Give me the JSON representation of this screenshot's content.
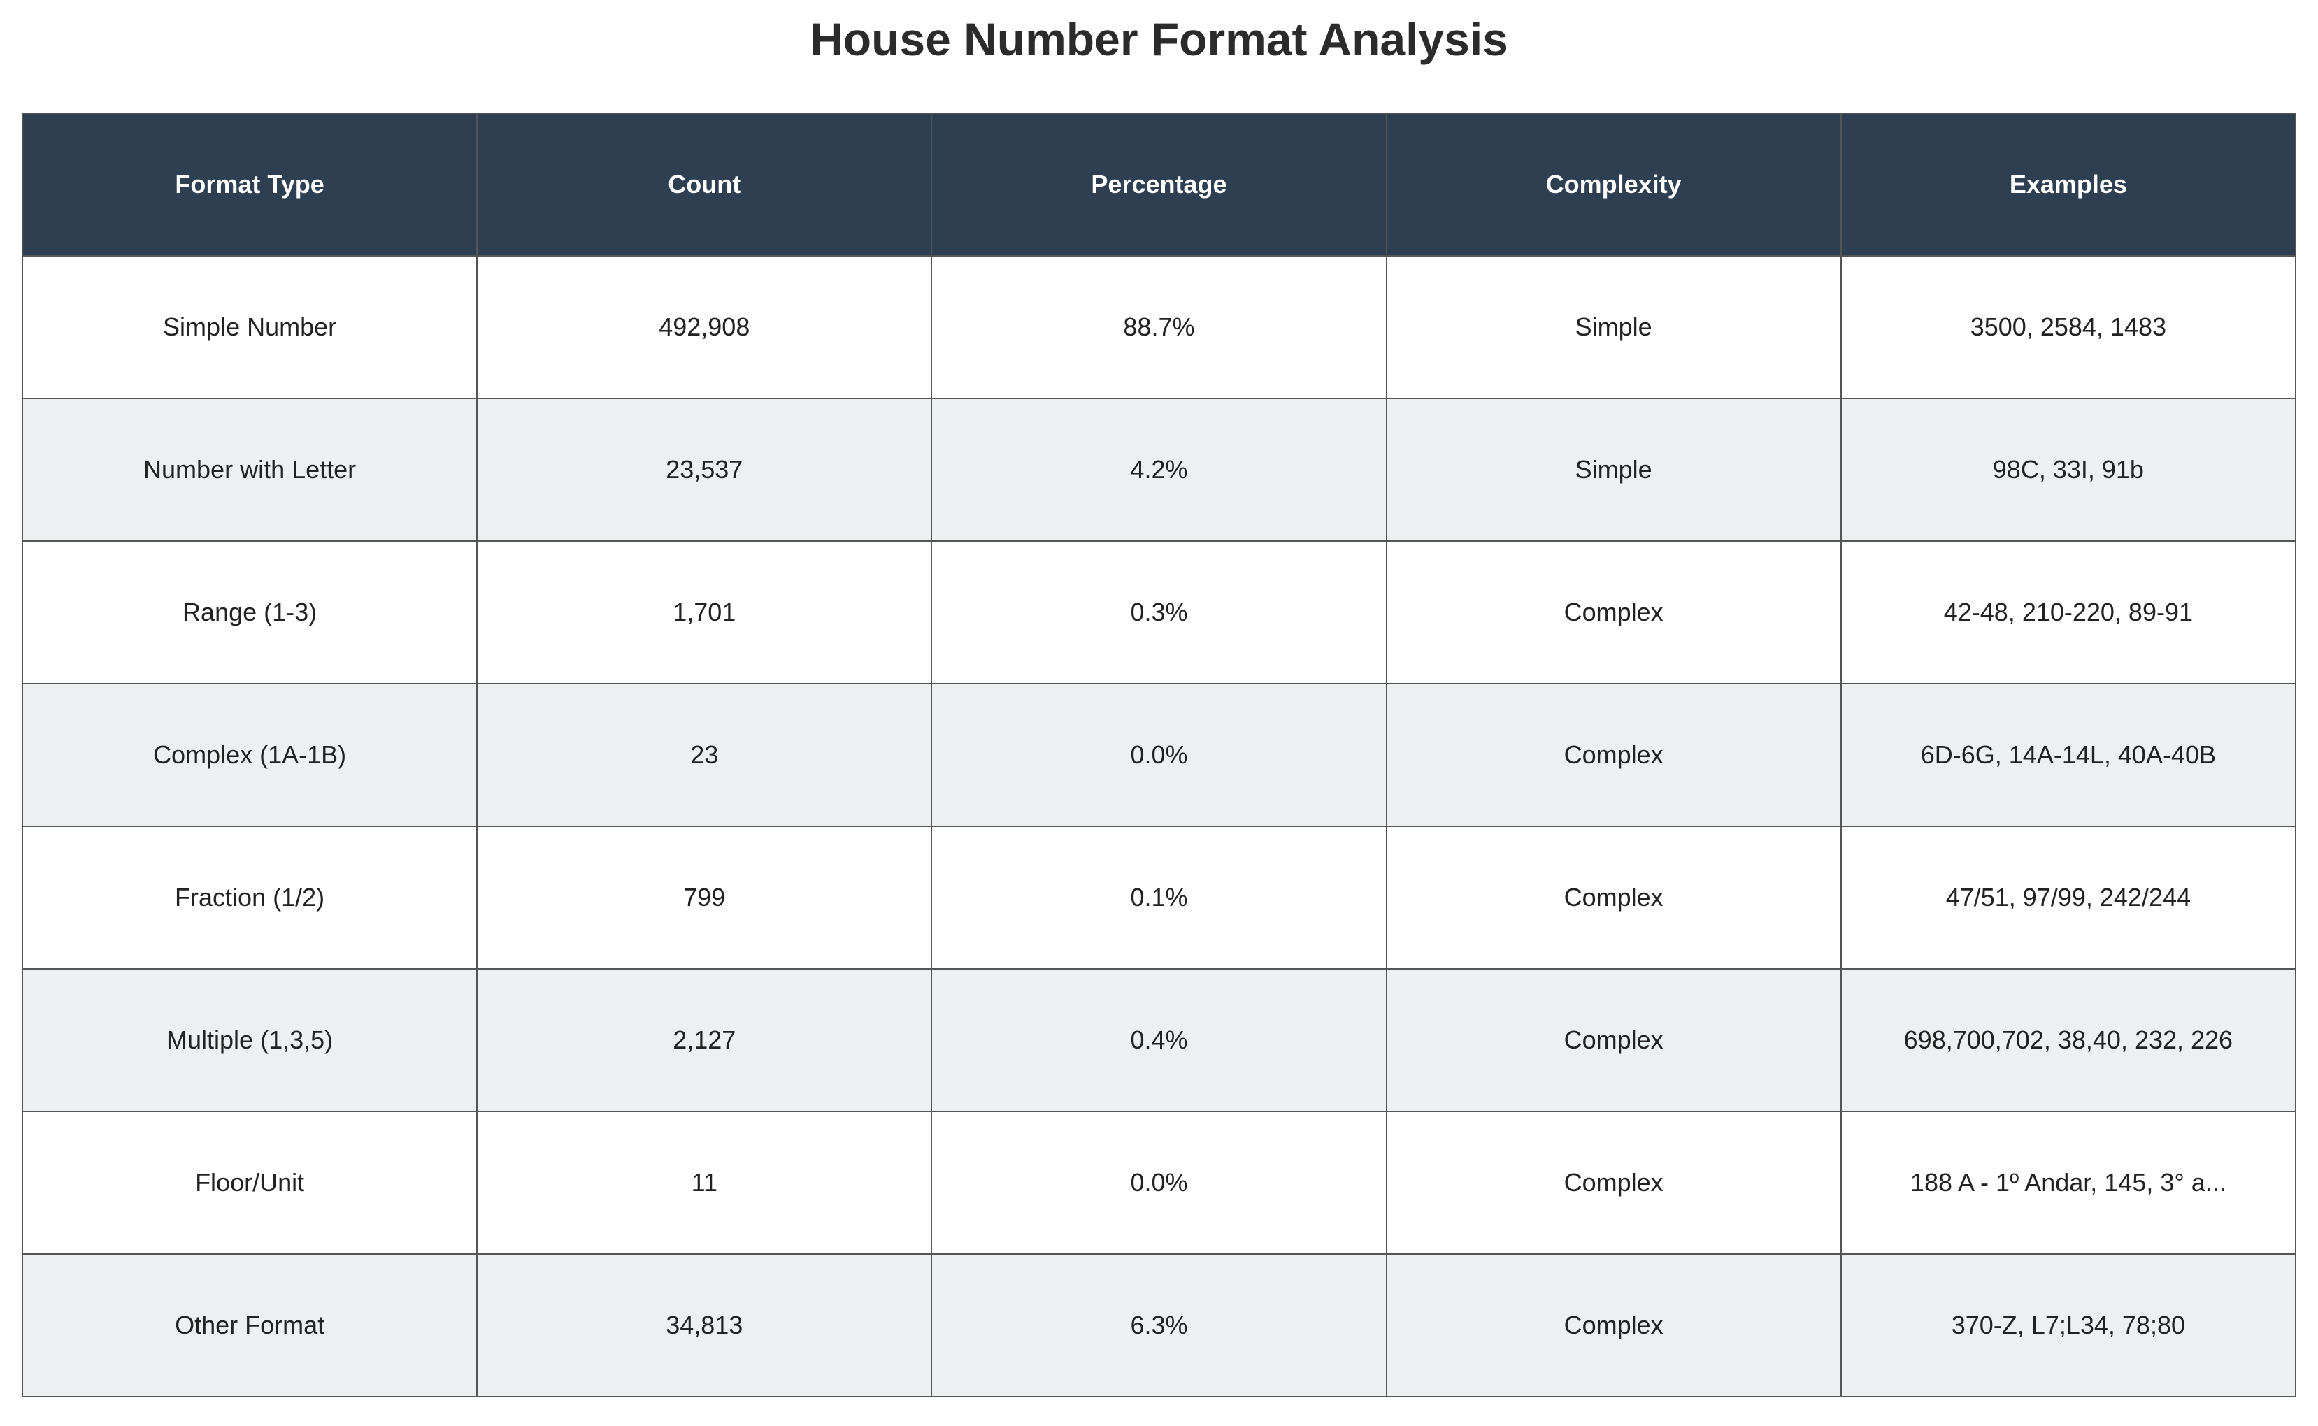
{
  "colors": {
    "header_bg": "#2e3f52",
    "header_text": "#ffffff",
    "row_alt_bg": "#ecf0f1",
    "row_bg": "#ffffff",
    "border": "#555555"
  },
  "chart_data": {
    "type": "table",
    "title": "House Number Format Analysis",
    "columns": [
      "Format Type",
      "Count",
      "Percentage",
      "Complexity",
      "Examples"
    ],
    "rows": [
      [
        "Simple Number",
        "492,908",
        "88.7%",
        "Simple",
        "3500, 2584, 1483"
      ],
      [
        "Number with Letter",
        "23,537",
        "4.2%",
        "Simple",
        "98C, 33I, 91b"
      ],
      [
        "Range (1-3)",
        "1,701",
        "0.3%",
        "Complex",
        "42-48, 210-220, 89-91"
      ],
      [
        "Complex (1A-1B)",
        "23",
        "0.0%",
        "Complex",
        "6D-6G, 14A-14L, 40A-40B"
      ],
      [
        "Fraction (1/2)",
        "799",
        "0.1%",
        "Complex",
        "47/51, 97/99, 242/244"
      ],
      [
        "Multiple (1,3,5)",
        "2,127",
        "0.4%",
        "Complex",
        "698,700,702, 38,40, 232, 226"
      ],
      [
        "Floor/Unit",
        "11",
        "0.0%",
        "Complex",
        "188 A - 1º Andar, 145, 3° a..."
      ],
      [
        "Other Format",
        "34,813",
        "6.3%",
        "Complex",
        "370-Z, L7;L34, 78;80"
      ]
    ]
  }
}
